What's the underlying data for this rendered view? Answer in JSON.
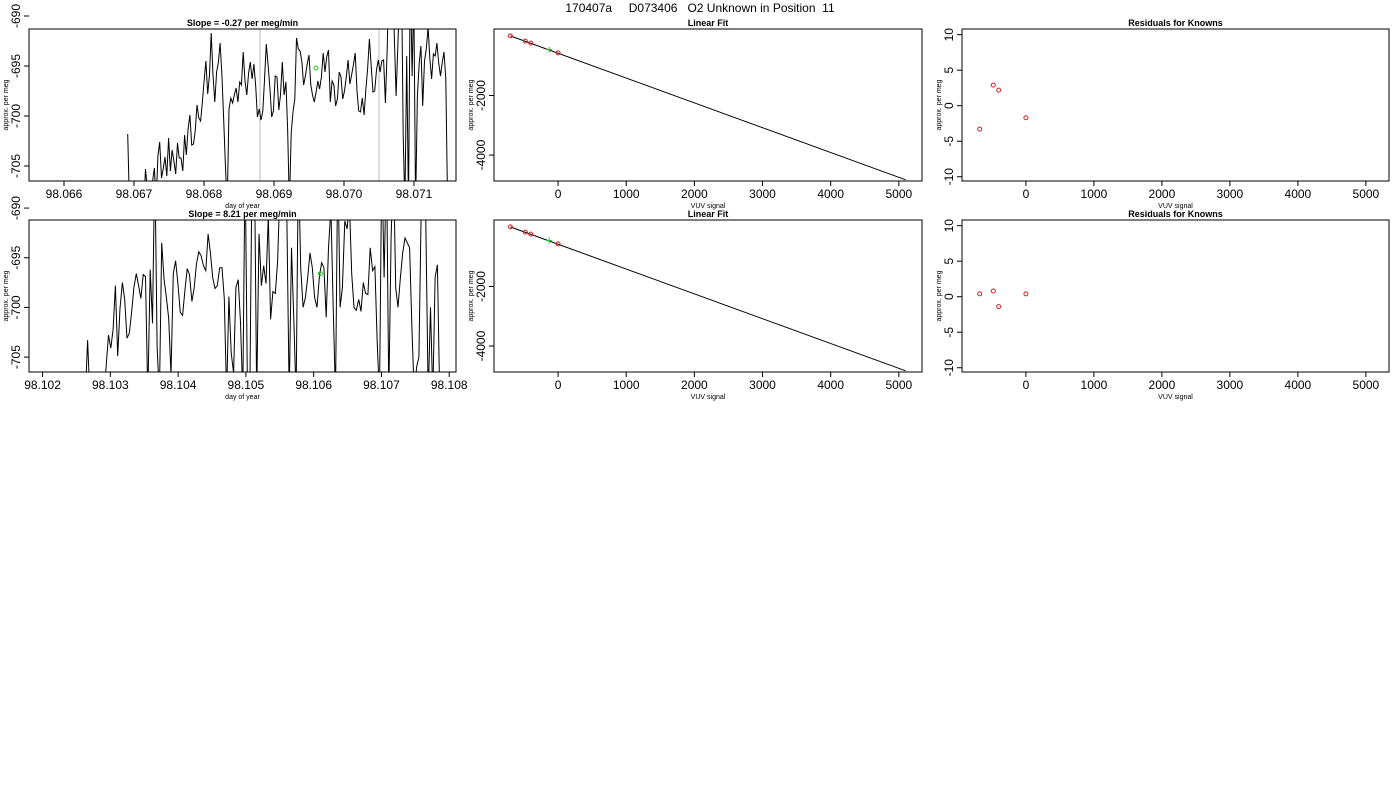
{
  "page_title": "170407a     D073406   O2 Unknown in Position  11",
  "colors": {
    "trace": "#000000",
    "known_point": "#cc2222",
    "unknown_point": "#22cc22",
    "marker_line": "#bbbbbb"
  },
  "chart_data": [
    {
      "type": "line",
      "title": "Slope =  -0.27  per meg/min",
      "xlabel": "day of year",
      "ylabel": "approx. per meg",
      "xlim": [
        98.0655,
        98.0716
      ],
      "ylim": [
        -706.5,
        -691.3
      ],
      "x_ticks": [
        98.066,
        98.067,
        98.068,
        98.069,
        98.07,
        98.071
      ],
      "x_tick_labels": [
        "98.066",
        "98.067",
        "98.068",
        "98.069",
        "98.070",
        "98.071"
      ],
      "y_ticks": [
        -705,
        -700,
        -695,
        -690
      ],
      "y_tick_labels": [
        "-705",
        "-700",
        "-695",
        "-690"
      ],
      "markers_x": [
        98.0688,
        98.0705
      ],
      "unknown_point": [
        98.0696,
        -695.2
      ],
      "trace_start": 98.06691,
      "trace_end": 98.07148,
      "trace": [
        -701.8,
        -709,
        -709,
        -709,
        -709,
        -709,
        -709,
        -709,
        -709,
        -709,
        -705.3,
        -707.2,
        -709,
        -709,
        -706.5,
        -705.2,
        -708.8,
        -704,
        -702.6,
        -706.2,
        -705.3,
        -704.1,
        -706,
        -702.2,
        -705.5,
        -703.4,
        -704.5,
        -705.8,
        -702.7,
        -704.2,
        -704.2,
        -705.5,
        -701.9,
        -703.9,
        -701.3,
        -699.9,
        -702.9,
        -702.8,
        -701.5,
        -698.9,
        -700.2,
        -700.5,
        -698.7,
        -696.5,
        -694.5,
        -697.8,
        -695.9,
        -691.7,
        -695.9,
        -698.6,
        -695.6,
        -694.7,
        -692.7,
        -695.9,
        -700.4,
        -704.9,
        -709,
        -699.3,
        -698.2,
        -698.7,
        -697.9,
        -697.2,
        -698.6,
        -696.6,
        -696.9,
        -693.6,
        -696.5,
        -697.9,
        -695.7,
        -694.6,
        -696.3,
        -694.8,
        -697,
        -700.1,
        -699.3,
        -700.4,
        -699.5,
        -696.4,
        -692.8,
        -694.9,
        -697.2,
        -700.1,
        -699.5,
        -696,
        -696.1,
        -699.4,
        -697.9,
        -694.6,
        -697.9,
        -696.6,
        -701.2,
        -709,
        -701.7,
        -699.6,
        -698.3,
        -692.2,
        -693.3,
        -693.5,
        -694.6,
        -696.9,
        -696,
        -694.8,
        -693.9,
        -696.9,
        -697.9,
        -698.6,
        -697.6,
        -696.5,
        -697.3,
        -696.1,
        -693.7,
        -695.6,
        -694.1,
        -693.4,
        -698.6,
        -696.5,
        -696.9,
        -699,
        -698.3,
        -695.6,
        -696.1,
        -698.3,
        -697.5,
        -696.1,
        -694.4,
        -696.8,
        -695.9,
        -694.9,
        -693.7,
        -697.5,
        -699.5,
        -699.6,
        -698.2,
        -699.9,
        -697.4,
        -695.3,
        -692.3,
        -695,
        -697.6,
        -697.5,
        -695.4,
        -694.4,
        -695.6,
        -694.5,
        -694.4,
        -698.7,
        -693.3,
        -685,
        -688.5,
        -685,
        -692,
        -698,
        -693.1,
        -688,
        -685,
        -702,
        -709,
        -694,
        -709,
        -685,
        -696,
        -688,
        -709,
        -698,
        -694.7,
        -693,
        -699,
        -694.5,
        -693.3,
        -691.1,
        -694.2,
        -696.3,
        -693.8,
        -694,
        -692.7,
        -694.7,
        -696,
        -694.6,
        -693.6,
        -696.3,
        -709
      ]
    },
    {
      "type": "scatter",
      "title": "Linear Fit",
      "xlabel": "VUV signal",
      "ylabel": "approx. per meg",
      "xlim": [
        -940,
        5340
      ],
      "ylim": [
        -4870,
        230
      ],
      "x_ticks": [
        0,
        1000,
        2000,
        3000,
        4000,
        5000
      ],
      "x_tick_labels": [
        "0",
        "1000",
        "2000",
        "3000",
        "4000",
        "5000"
      ],
      "y_ticks": [
        -4000,
        -2000
      ],
      "y_tick_labels": [
        "-4000",
        "-2000"
      ],
      "fit_line": [
        [
          -700,
          0
        ],
        [
          5100,
          -4830
        ]
      ],
      "known_points": [
        [
          -700,
          0
        ],
        [
          -480,
          -176
        ],
        [
          -400,
          -245
        ],
        [
          0,
          -570
        ]
      ],
      "unknown_point": [
        -130,
        -460
      ]
    },
    {
      "type": "scatter",
      "title": "Residuals for Knowns",
      "xlabel": "VUV signal",
      "ylabel": "approx. per meg",
      "xlim": [
        -940,
        5340
      ],
      "ylim": [
        -10.6,
        10.8
      ],
      "x_ticks": [
        0,
        1000,
        2000,
        3000,
        4000,
        5000
      ],
      "x_tick_labels": [
        "0",
        "1000",
        "2000",
        "3000",
        "4000",
        "5000"
      ],
      "y_ticks": [
        -10,
        -5,
        0,
        5,
        10
      ],
      "y_tick_labels": [
        "-10",
        "-5",
        "0",
        "5",
        "10"
      ],
      "known_points": [
        [
          -680,
          -3.3
        ],
        [
          -480,
          2.9
        ],
        [
          -400,
          2.2
        ],
        [
          0,
          -1.7
        ]
      ]
    },
    {
      "type": "line",
      "title": "Slope =  8.21  per meg/min",
      "xlabel": "day of year",
      "ylabel": "approx. per meg",
      "xlim": [
        98.1018,
        98.1081
      ],
      "ylim": [
        -706.5,
        -691.2
      ],
      "x_ticks": [
        98.102,
        98.103,
        98.104,
        98.105,
        98.106,
        98.107,
        98.108
      ],
      "x_tick_labels": [
        "98.102",
        "98.103",
        "98.104",
        "98.105",
        "98.106",
        "98.107",
        "98.108"
      ],
      "y_ticks": [
        -705,
        -700,
        -695,
        -690
      ],
      "y_tick_labels": [
        "-705",
        "-700",
        "-695",
        "-690"
      ],
      "markers_x": [],
      "unknown_point": [
        98.1061,
        -696.6
      ],
      "trace_start": 98.1014,
      "trace_end": 98.10786,
      "trace": [
        -709,
        -709,
        -709,
        -709,
        -709,
        -709,
        -709,
        -709,
        -709,
        -709,
        -709,
        -709,
        -709,
        -709,
        -709,
        -709,
        -709,
        -709,
        -709,
        -709,
        -709,
        -709,
        -709,
        -709,
        -709,
        -709,
        -709,
        -709,
        -709,
        -709,
        -709,
        -709,
        -709,
        -709,
        -709,
        -709,
        -709,
        -703.3,
        -709,
        -709,
        -709,
        -709,
        -709,
        -709,
        -709,
        -706,
        -702.8,
        -704.1,
        -702.2,
        -697.8,
        -704.9,
        -700.1,
        -697.5,
        -699.2,
        -703.1,
        -702.6,
        -700.5,
        -698,
        -696.6,
        -697.8,
        -699.1,
        -696.7,
        -696.9,
        -709,
        -696.2,
        -701.6,
        -685,
        -703.9,
        -709,
        -693.5,
        -697.2,
        -699,
        -701.1,
        -706.8,
        -696.6,
        -695.3,
        -697.7,
        -700.5,
        -700.8,
        -698.3,
        -696.1,
        -696.7,
        -699.4,
        -698,
        -695.6,
        -694.4,
        -694.8,
        -695.8,
        -696.3,
        -692.6,
        -694.5,
        -697,
        -698.1,
        -697.8,
        -696,
        -696,
        -699.1,
        -709,
        -698.9,
        -704.6,
        -706.6,
        -698,
        -697.2,
        -701.5,
        -709,
        -685,
        -709,
        -709,
        -685,
        -685,
        -709,
        -692.6,
        -697.8,
        -695.8,
        -697.6,
        -690.8,
        -701.2,
        -698.4,
        -698.6,
        -695.4,
        -688.1,
        -685,
        -685,
        -690.5,
        -709,
        -694,
        -701.2,
        -709,
        -685,
        -696,
        -700,
        -699,
        -697,
        -694.5,
        -696,
        -699,
        -700,
        -697,
        -695.5,
        -696,
        -701,
        -694,
        -690,
        -700,
        -709,
        -685,
        -700,
        -698,
        -691.3,
        -692.1,
        -689.5,
        -696.6,
        -700,
        -700.3,
        -699.2,
        -700.4,
        -697.5,
        -698.6,
        -698.7,
        -694,
        -696.3,
        -695.9,
        -703.5,
        -709,
        -685,
        -697,
        -685,
        -709,
        -693,
        -685,
        -698,
        -700,
        -697,
        -694.5,
        -693,
        -693.5,
        -694,
        -702,
        -709,
        -706,
        -705,
        -690.1,
        -688.3,
        -691.3,
        -709,
        -700,
        -709,
        -697,
        -695.7,
        -709
      ]
    },
    {
      "type": "scatter",
      "title": "Linear Fit",
      "xlabel": "VUV signal",
      "ylabel": "approx. per meg",
      "xlim": [
        -940,
        5340
      ],
      "ylim": [
        -4870,
        230
      ],
      "x_ticks": [
        0,
        1000,
        2000,
        3000,
        4000,
        5000
      ],
      "x_tick_labels": [
        "0",
        "1000",
        "2000",
        "3000",
        "4000",
        "5000"
      ],
      "y_ticks": [
        -4000,
        -2000
      ],
      "y_tick_labels": [
        "-4000",
        "-2000"
      ],
      "fit_line": [
        [
          -700,
          0
        ],
        [
          5100,
          -4830
        ]
      ],
      "known_points": [
        [
          -700,
          0
        ],
        [
          -480,
          -176
        ],
        [
          -400,
          -245
        ],
        [
          0,
          -570
        ]
      ],
      "unknown_point": [
        -130,
        -460
      ]
    },
    {
      "type": "scatter",
      "title": "Residuals for Knowns",
      "xlabel": "VUV signal",
      "ylabel": "approx. per meg",
      "xlim": [
        -940,
        5340
      ],
      "ylim": [
        -10.6,
        10.8
      ],
      "x_ticks": [
        0,
        1000,
        2000,
        3000,
        4000,
        5000
      ],
      "x_tick_labels": [
        "0",
        "1000",
        "2000",
        "3000",
        "4000",
        "5000"
      ],
      "y_ticks": [
        -10,
        -5,
        0,
        5,
        10
      ],
      "y_tick_labels": [
        "-10",
        "-5",
        "0",
        "5",
        "10"
      ],
      "known_points": [
        [
          -680,
          0.4
        ],
        [
          -480,
          0.8
        ],
        [
          -400,
          -1.4
        ],
        [
          0,
          0.4
        ]
      ]
    }
  ]
}
